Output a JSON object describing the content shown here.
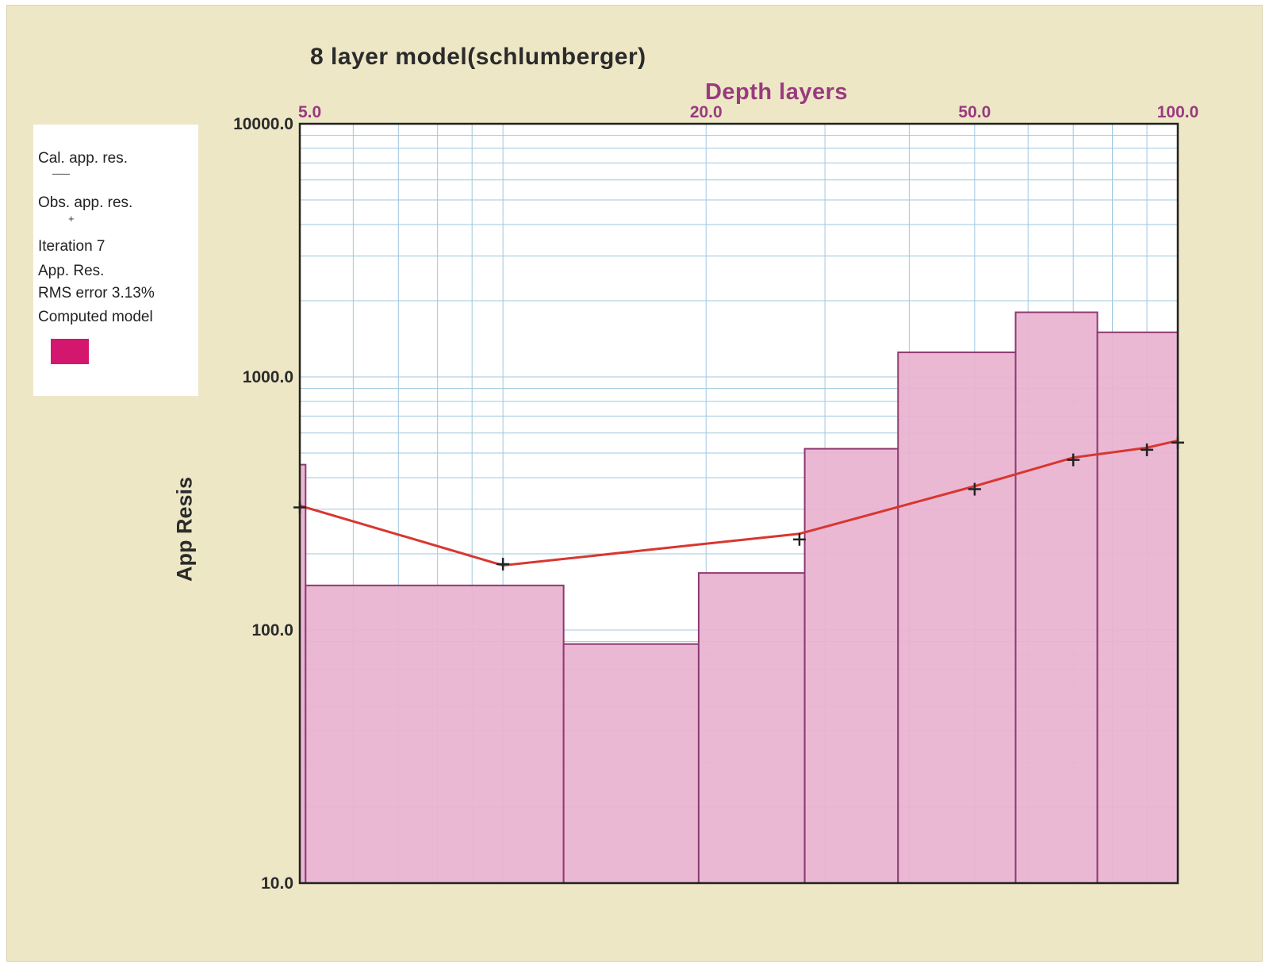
{
  "chart_data": {
    "type": "step-area + line",
    "title": "8 layer model(schlumberger)",
    "xlabel": "Depth layers",
    "ylabel": "App Resis",
    "xscale": "log",
    "yscale": "log",
    "xlim": [
      5.0,
      100.0
    ],
    "ylim": [
      10.0,
      10000.0
    ],
    "x_ticks": [
      "5.0",
      "20.0",
      "50.0",
      "100.0"
    ],
    "y_ticks": [
      "10000.0",
      "1000.0",
      "100.0",
      "10.0"
    ],
    "grid": true,
    "legend_position": "left, outside plot",
    "computed_model": {
      "name": "Computed model",
      "color": "#e9b3d1",
      "edge_color": "#8e3a72",
      "legend_color": "#d4176e",
      "layers": [
        {
          "top": 5.0,
          "bottom": 5.1,
          "resistivity": 450
        },
        {
          "top": 5.1,
          "bottom": 12.3,
          "resistivity": 150
        },
        {
          "top": 12.3,
          "bottom": 19.5,
          "resistivity": 88
        },
        {
          "top": 19.5,
          "bottom": 28.0,
          "resistivity": 168
        },
        {
          "top": 28.0,
          "bottom": 38.5,
          "resistivity": 520
        },
        {
          "top": 38.5,
          "bottom": 57.5,
          "resistivity": 1250
        },
        {
          "top": 57.5,
          "bottom": 76.0,
          "resistivity": 1800
        },
        {
          "top": 76.0,
          "bottom": 100.0,
          "resistivity": 1500
        }
      ]
    },
    "calculated": {
      "name": "Cal. app. res.",
      "color": "#d8372f",
      "x": [
        5.0,
        10.0,
        27.5,
        50.0,
        70.0,
        90.0,
        100.0
      ],
      "y": [
        310,
        180,
        240,
        370,
        480,
        525,
        560
      ]
    },
    "observed": {
      "name": "Obs. app. res.",
      "marker": "+",
      "color": "#222222",
      "x": [
        5.0,
        10.0,
        27.5,
        50.0,
        70.0,
        90.0,
        100.0
      ],
      "y": [
        305,
        182,
        228,
        360,
        470,
        515,
        550
      ]
    }
  },
  "legend": {
    "cal_label": "Cal. app. res.",
    "obs_label": "Obs. app. res.",
    "iteration": "Iteration 7",
    "app_res": "App. Res.",
    "rms": "RMS error 3.13%",
    "model_label": "Computed model"
  }
}
